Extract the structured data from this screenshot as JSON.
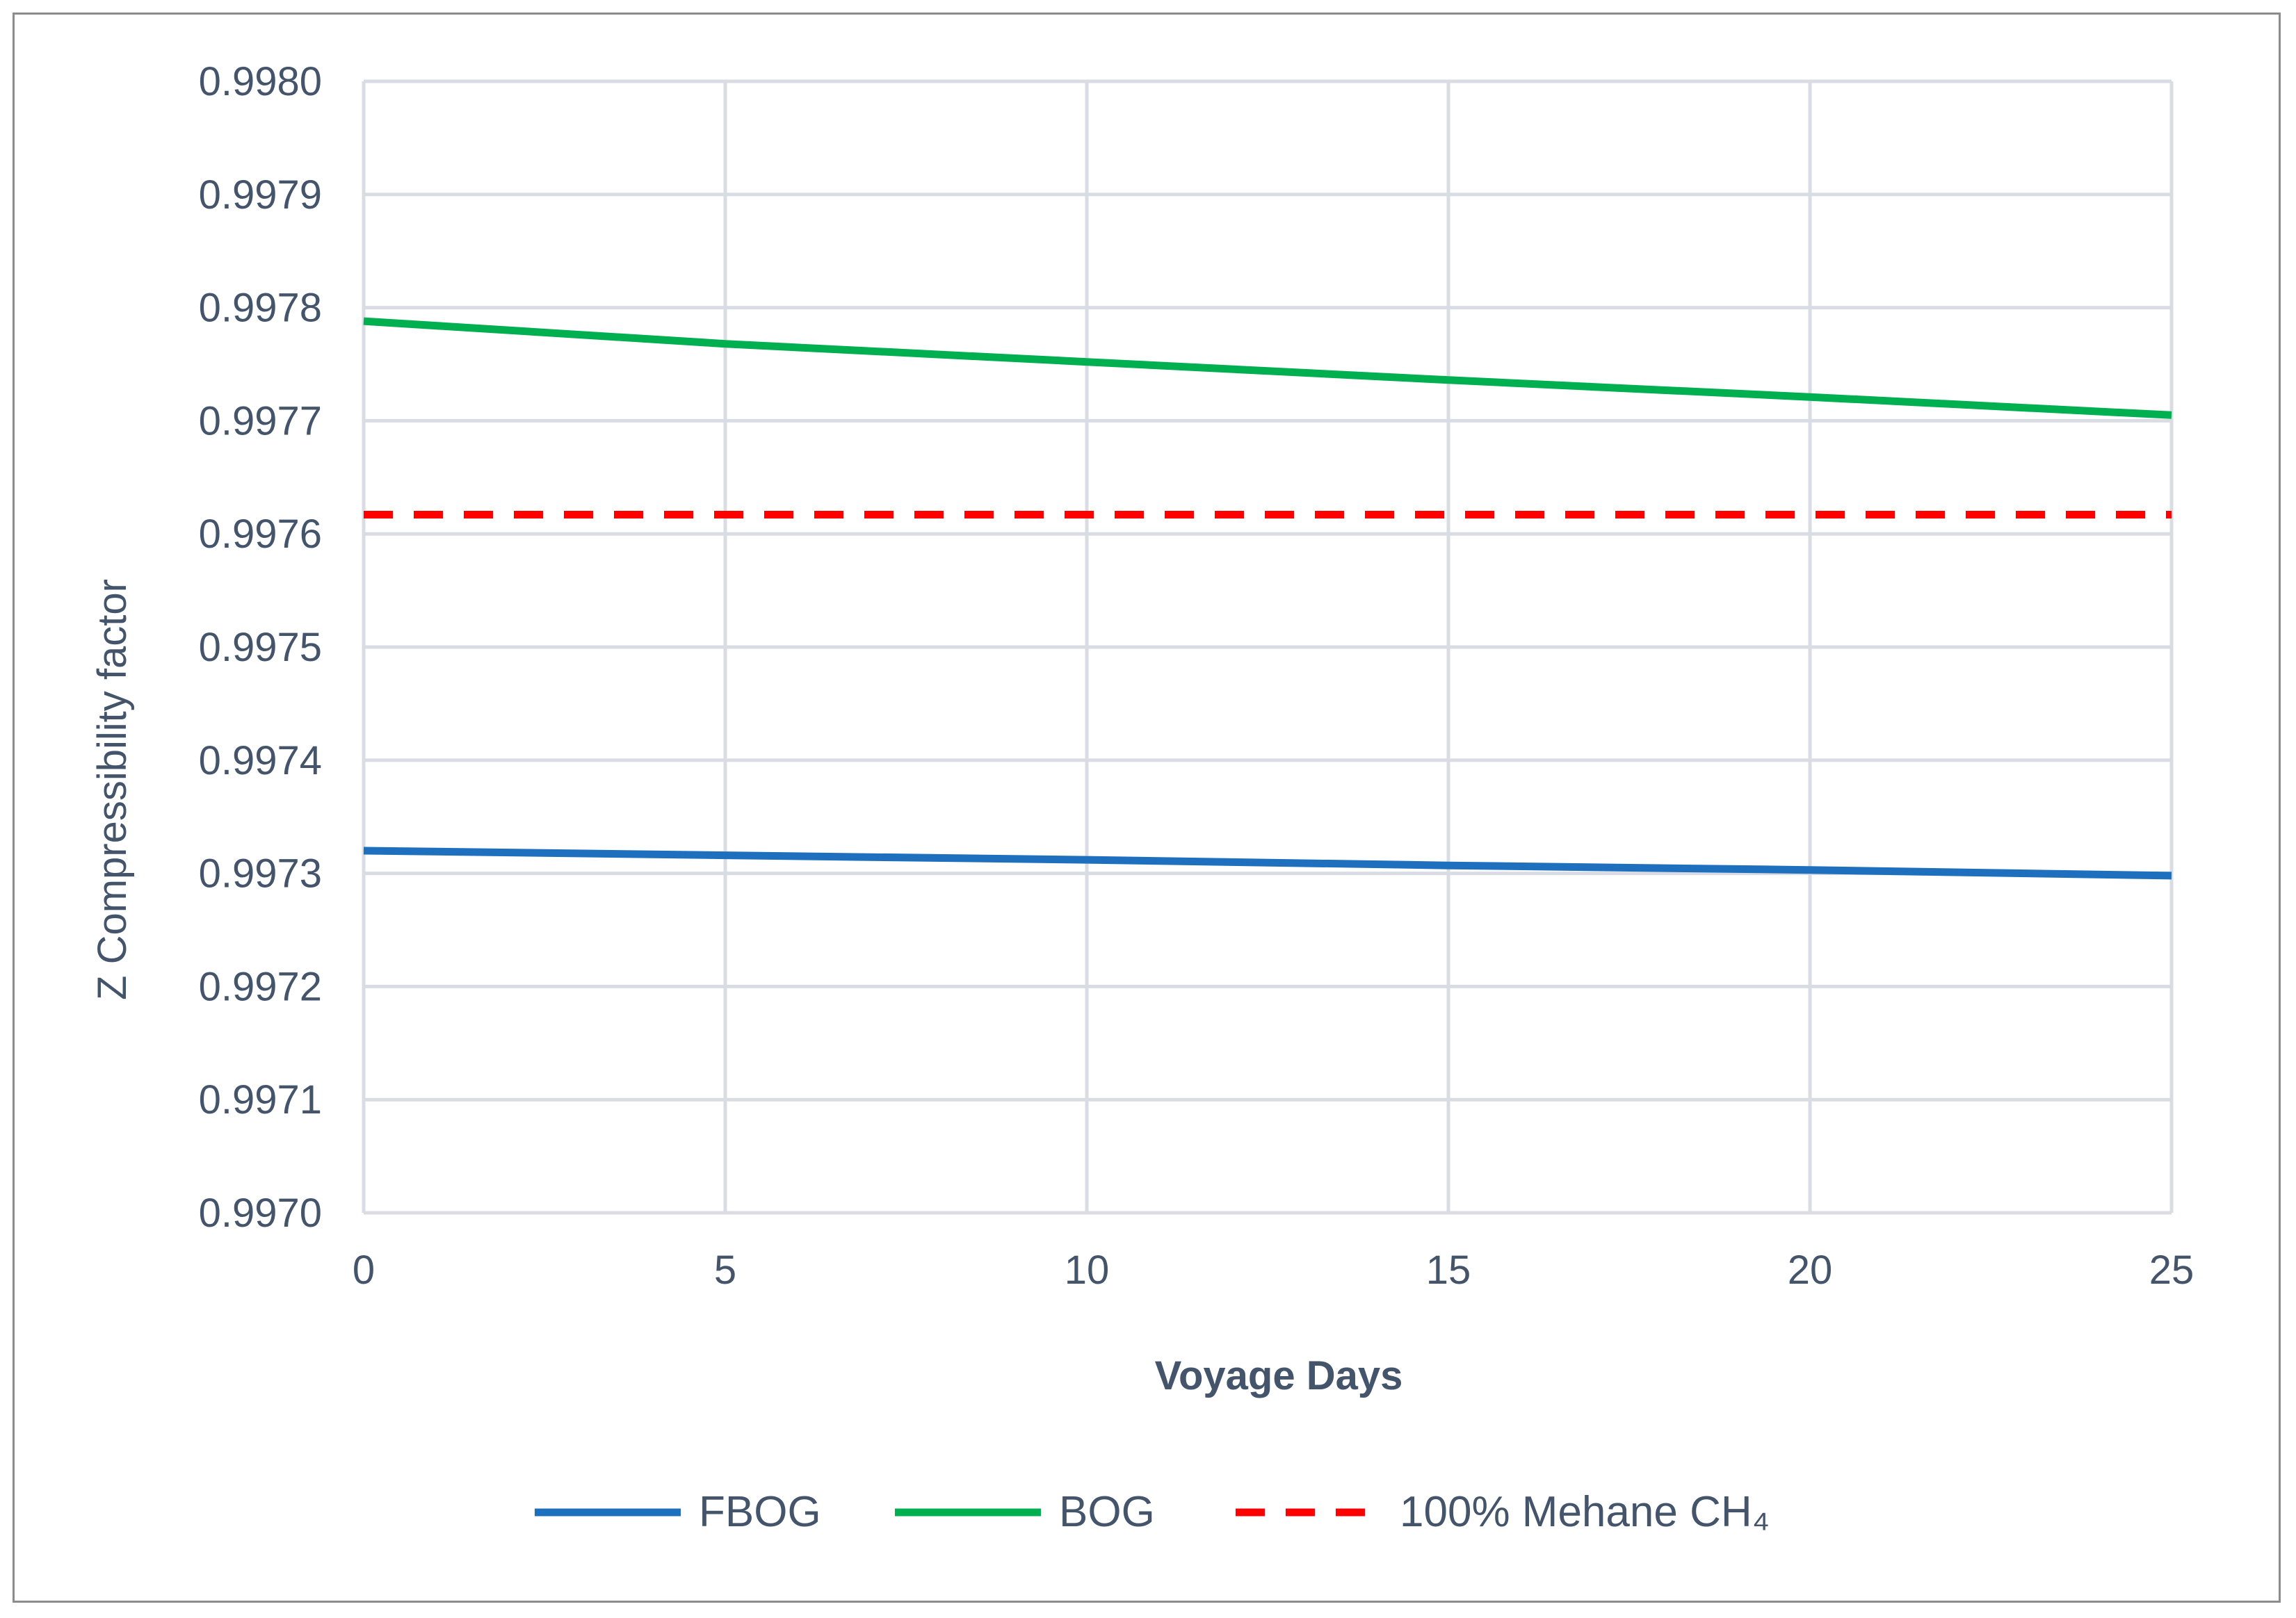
{
  "chart_data": {
    "type": "line",
    "xlabel": "Voyage Days",
    "ylabel": "Z  Compressibility  factor",
    "x_ticks": [
      "0",
      "5",
      "10",
      "15",
      "20",
      "25"
    ],
    "y_ticks": [
      "0.9970",
      "0.9971",
      "0.9972",
      "0.9973",
      "0.9974",
      "0.9975",
      "0.9976",
      "0.9977",
      "0.9978",
      "0.9979",
      "0.9980"
    ],
    "xlim": [
      0,
      25
    ],
    "ylim": [
      0.997,
      0.998
    ],
    "grid": true,
    "legend_position": "bottom",
    "series": [
      {
        "name": "FBOG",
        "color": "#1f6fbf",
        "dash": "solid",
        "x": [
          0,
          5,
          10,
          15,
          20,
          25
        ],
        "y": [
          0.99732,
          0.997316,
          0.997312,
          0.997307,
          0.997303,
          0.997298
        ]
      },
      {
        "name": "BOG",
        "color": "#00b050",
        "dash": "solid",
        "x": [
          0,
          5,
          10,
          15,
          20,
          25
        ],
        "y": [
          0.997788,
          0.997768,
          0.997752,
          0.997736,
          0.997721,
          0.997705
        ]
      },
      {
        "name": "100% Mehane CH₄",
        "color": "#ff0000",
        "dash": "dashed",
        "x": [
          0,
          5,
          10,
          15,
          20,
          25
        ],
        "y": [
          0.997617,
          0.997617,
          0.997617,
          0.997617,
          0.997617,
          0.997617
        ]
      }
    ]
  }
}
